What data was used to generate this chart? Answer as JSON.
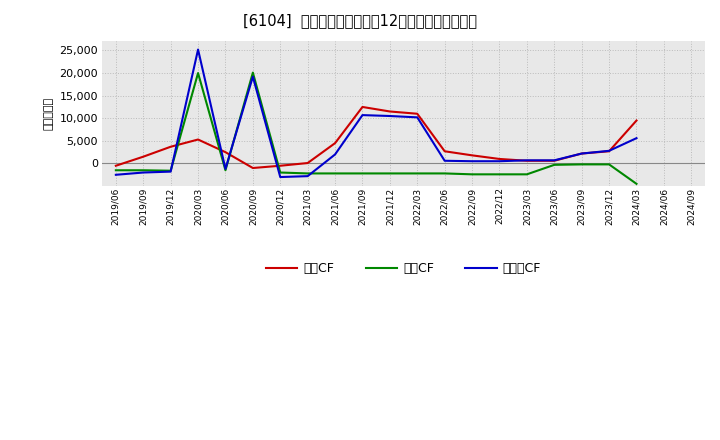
{
  "title": "[6104]  キャッシュフローの12か月移動合計の推移",
  "ylabel": "（百万円）",
  "background_color": "#ffffff",
  "plot_bg_color": "#e8e8e8",
  "ylim_min": -5000,
  "ylim_max": 27000,
  "yticks": [
    0,
    5000,
    10000,
    15000,
    20000,
    25000
  ],
  "dates": [
    "2019/06",
    "2019/09",
    "2019/12",
    "2020/03",
    "2020/06",
    "2020/09",
    "2020/12",
    "2021/03",
    "2021/06",
    "2021/09",
    "2021/12",
    "2022/03",
    "2022/06",
    "2022/09",
    "2022/12",
    "2023/03",
    "2023/06",
    "2023/09",
    "2023/12",
    "2024/03",
    "2024/06",
    "2024/09"
  ],
  "eigyo_cf": [
    -500,
    1500,
    3700,
    5300,
    2500,
    -1000,
    -500,
    100,
    4500,
    12500,
    11500,
    11000,
    2700,
    1800,
    1000,
    600,
    600,
    2200,
    2700,
    9500,
    null,
    null
  ],
  "toshi_cf": [
    -1500,
    -1500,
    -1600,
    20000,
    -1500,
    20100,
    -2000,
    -2200,
    -2200,
    -2200,
    -2200,
    -2200,
    -2200,
    -2400,
    -2400,
    -2400,
    -300,
    -200,
    -200,
    -4500,
    null,
    null
  ],
  "free_cf": [
    -2500,
    -2000,
    -1800,
    25200,
    -1200,
    19200,
    -3000,
    -2800,
    2000,
    10700,
    10500,
    10200,
    600,
    500,
    500,
    700,
    700,
    2200,
    2800,
    5600,
    null,
    null
  ],
  "eigyo_color": "#cc0000",
  "toshi_color": "#008800",
  "free_color": "#0000cc",
  "legend_labels": [
    "営業CF",
    "投資CF",
    "フリーCF"
  ],
  "linewidth": 1.5,
  "grid_color": "#bbbbbb",
  "zero_line_color": "#888888"
}
